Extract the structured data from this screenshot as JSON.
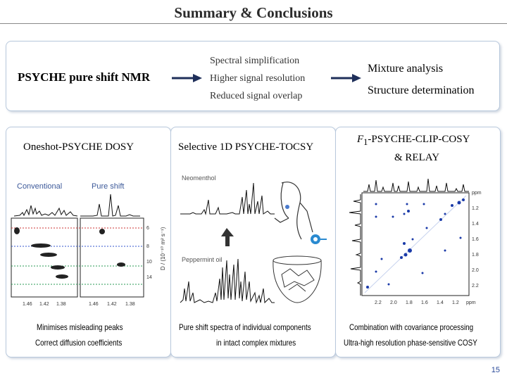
{
  "slide": {
    "title": "Summary & Conclusions",
    "page_number": "15"
  },
  "summary": {
    "method": "PSYCHE pure shift NMR",
    "benefits": [
      "Spectral simplification",
      "Higher signal resolution",
      "Reduced signal overlap"
    ],
    "applications": [
      "Mixture analysis",
      "Structure determination"
    ]
  },
  "panels": {
    "dosy": {
      "title": "Oneshot-PSYCHE DOSY",
      "label_conventional": "Conventional",
      "label_pure_shift": "Pure shift",
      "y_axis_label": "D / (10⁻¹⁰ m² s⁻¹)",
      "y_ticks": [
        "6",
        "8",
        "10",
        "14"
      ],
      "x_ticks_left": [
        "1.46",
        "1.42",
        "1.38"
      ],
      "x_ticks_right": [
        "1.46",
        "1.42",
        "1.38"
      ],
      "caption_1": "Minimises misleading peaks",
      "caption_2": "Correct diffusion coefficients"
    },
    "tocsy": {
      "title": "Selective 1D PSYCHE-TOCSY",
      "label_top": "Neomenthol",
      "label_bottom": "Peppermint oil",
      "caption_1": "Pure shift spectra of individual components",
      "caption_2": "in intact complex mixtures"
    },
    "cosy": {
      "title_prefix": "F",
      "title_subscript": "1",
      "title_main": "-PSYCHE-CLIP-COSY",
      "title_line2": "& RELAY",
      "axis_unit": "ppm",
      "y_ticks": [
        "1.2",
        "1.4",
        "1.6",
        "1.8",
        "2.0",
        "2.2"
      ],
      "x_ticks": [
        "2.2",
        "2.0",
        "1.8",
        "1.6",
        "1.4",
        "1.2"
      ],
      "caption_1": "Combination with covariance processing",
      "caption_2": "Ultra-high resolution phase-sensitive COSY"
    }
  }
}
